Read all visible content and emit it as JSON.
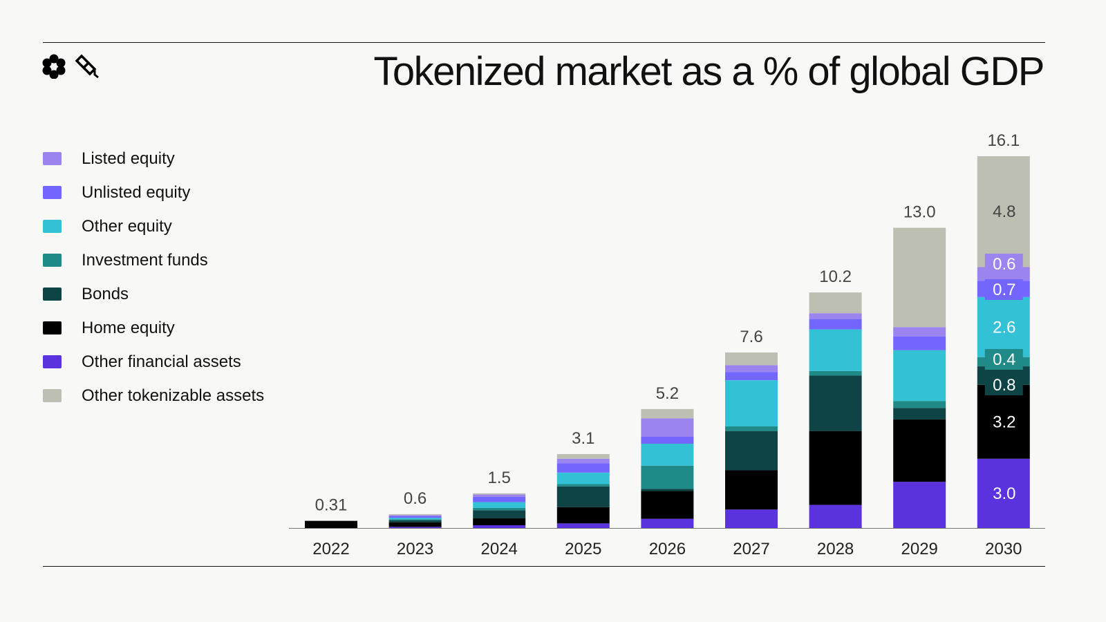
{
  "chart_data": {
    "type": "bar",
    "stacked": true,
    "title": "Tokenized market as a % of global GDP",
    "xlabel": "",
    "ylabel": "",
    "ylim": [
      0,
      16.1
    ],
    "grid": false,
    "legend_position": "left",
    "categories": [
      "2022",
      "2023",
      "2024",
      "2025",
      "2026",
      "2027",
      "2028",
      "2029",
      "2030"
    ],
    "totals": [
      "0.31",
      "0.6",
      "1.5",
      "3.1",
      "5.2",
      "7.6",
      "10.2",
      "13.0",
      "16.1"
    ],
    "series": [
      {
        "name": "Other financial assets",
        "color": "#5a32de",
        "values": [
          0,
          0.05,
          0.12,
          0.2,
          0.4,
          0.8,
          1.0,
          2.0,
          3.0
        ]
      },
      {
        "name": "Home equity",
        "color": "#000000",
        "values": [
          0.31,
          0.2,
          0.3,
          0.7,
          1.2,
          1.7,
          3.2,
          2.7,
          3.2
        ]
      },
      {
        "name": "Bonds",
        "color": "#0f4446",
        "values": [
          0,
          0.08,
          0.35,
          0.9,
          0.1,
          1.7,
          2.4,
          0.5,
          0.8
        ]
      },
      {
        "name": "Investment funds",
        "color": "#1f8a87",
        "values": [
          0,
          0.05,
          0.1,
          0.1,
          1.0,
          0.2,
          0.2,
          0.3,
          0.4
        ]
      },
      {
        "name": "Other equity",
        "color": "#33c1d6",
        "values": [
          0,
          0.06,
          0.25,
          0.5,
          0.95,
          2.0,
          1.8,
          2.2,
          2.6
        ]
      },
      {
        "name": "Unlisted equity",
        "color": "#7366ff",
        "values": [
          0,
          0.08,
          0.23,
          0.4,
          0.3,
          0.35,
          0.45,
          0.6,
          0.7
        ]
      },
      {
        "name": "Listed equity",
        "color": "#9b84ee",
        "values": [
          0,
          0.04,
          0.1,
          0.2,
          0.8,
          0.3,
          0.25,
          0.4,
          0.6
        ]
      },
      {
        "name": "Other tokenizable assets",
        "color": "#bcbfb2",
        "values": [
          0,
          0.04,
          0.05,
          0.2,
          0.4,
          0.55,
          0.9,
          4.3,
          4.8
        ]
      }
    ],
    "segment_labels_2030": [
      "3.0",
      "3.2",
      "0.8",
      "0.4",
      "2.6",
      "0.7",
      "0.6",
      "4.8"
    ]
  },
  "legend": {
    "items": [
      {
        "label": "Listed equity",
        "color": "#9b84ee"
      },
      {
        "label": "Unlisted equity",
        "color": "#7366ff"
      },
      {
        "label": "Other equity",
        "color": "#33c1d6"
      },
      {
        "label": "Investment funds",
        "color": "#1f8a87"
      },
      {
        "label": "Bonds",
        "color": "#0f4446"
      },
      {
        "label": "Home equity",
        "color": "#000000"
      },
      {
        "label": "Other financial assets",
        "color": "#5a32de"
      },
      {
        "label": "Other tokenizable assets",
        "color": "#bcbfb2"
      }
    ]
  },
  "logos": [
    "flower-logo-icon",
    "cube-logo-icon"
  ]
}
